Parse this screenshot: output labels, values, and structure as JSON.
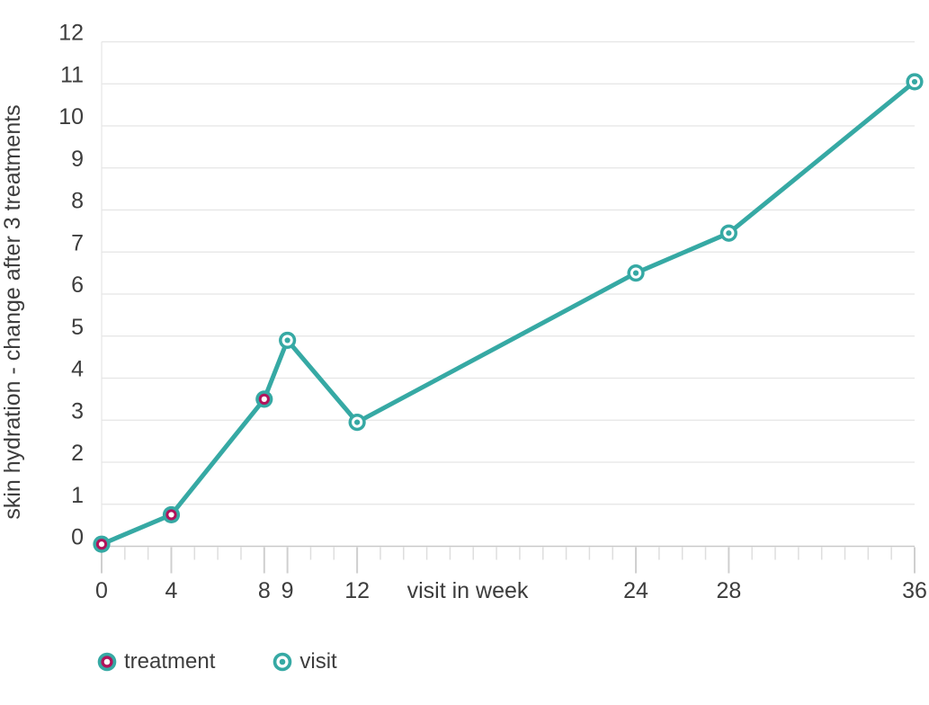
{
  "chart_data": {
    "type": "line",
    "title": "",
    "xlabel": "visit in week",
    "ylabel": "skin hydration - change after 3 treatments",
    "x_ticks": [
      0,
      4,
      8,
      9,
      12,
      24,
      28,
      36
    ],
    "y_ticks": [
      0,
      1,
      2,
      3,
      4,
      5,
      6,
      7,
      8,
      9,
      10,
      11,
      12
    ],
    "ylim": [
      0,
      12
    ],
    "xlim_weeks": [
      1,
      36
    ],
    "grid": "horizontal",
    "legend_position": "bottom-left",
    "points": [
      {
        "week": 0,
        "value": 0.05,
        "type": "treatment"
      },
      {
        "week": 4,
        "value": 0.75,
        "type": "treatment"
      },
      {
        "week": 8,
        "value": 3.5,
        "type": "treatment"
      },
      {
        "week": 9,
        "value": 4.9,
        "type": "visit"
      },
      {
        "week": 12,
        "value": 2.95,
        "type": "visit"
      },
      {
        "week": 24,
        "value": 6.5,
        "type": "visit"
      },
      {
        "week": 28,
        "value": 7.45,
        "type": "visit"
      },
      {
        "week": 36,
        "value": 11.05,
        "type": "visit"
      }
    ],
    "colors": {
      "line": "#36a9a4",
      "treatment": "#b1135b",
      "visit": "#36a9a4",
      "text": "#3d3d3d",
      "grid": "#e5e5e5",
      "axis": "#c9c9c9",
      "tick_minor": "#dedede",
      "tick_major": "#cfcfcf",
      "background": "#ffffff"
    }
  },
  "legend": {
    "items": [
      {
        "label": "treatment",
        "marker": "treatment"
      },
      {
        "label": "visit",
        "marker": "visit"
      }
    ]
  }
}
